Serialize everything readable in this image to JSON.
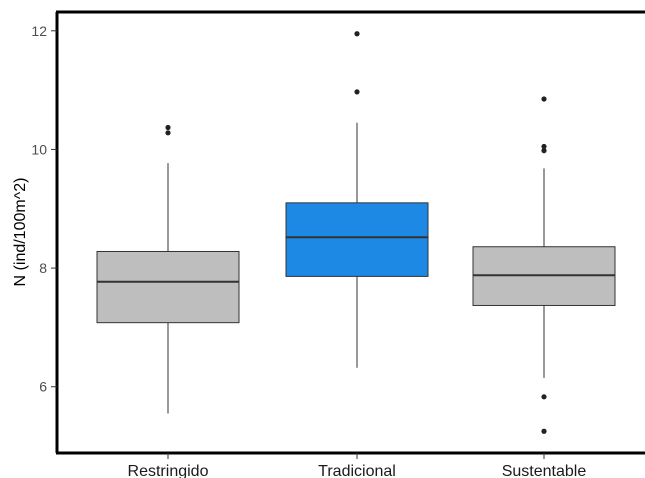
{
  "chart_data": {
    "type": "boxplot",
    "title": "",
    "xlabel": "",
    "ylabel": "N (ind/100m^2)",
    "ylim": [
      4.9,
      12.3
    ],
    "yticks": [
      6,
      8,
      10,
      12
    ],
    "grid": false,
    "legend": "none",
    "categories": [
      "Restringido",
      "Tradicional",
      "Sustentable"
    ],
    "boxes": [
      {
        "category": "Restringido",
        "whisker_low": 5.55,
        "q1": 7.08,
        "median": 7.77,
        "q3": 8.28,
        "whisker_high": 9.77,
        "outliers": [
          10.28,
          10.37
        ],
        "fill": "#bebebe"
      },
      {
        "category": "Tradicional",
        "whisker_low": 6.32,
        "q1": 7.86,
        "median": 8.52,
        "q3": 9.1,
        "whisker_high": 10.45,
        "outliers": [
          10.97,
          11.95
        ],
        "fill": "#1e88e5"
      },
      {
        "category": "Sustentable",
        "whisker_low": 6.15,
        "q1": 7.37,
        "median": 7.88,
        "q3": 8.36,
        "whisker_high": 9.68,
        "outliers": [
          9.98,
          10.05,
          10.85,
          5.83,
          5.25
        ],
        "fill": "#bebebe"
      }
    ]
  }
}
